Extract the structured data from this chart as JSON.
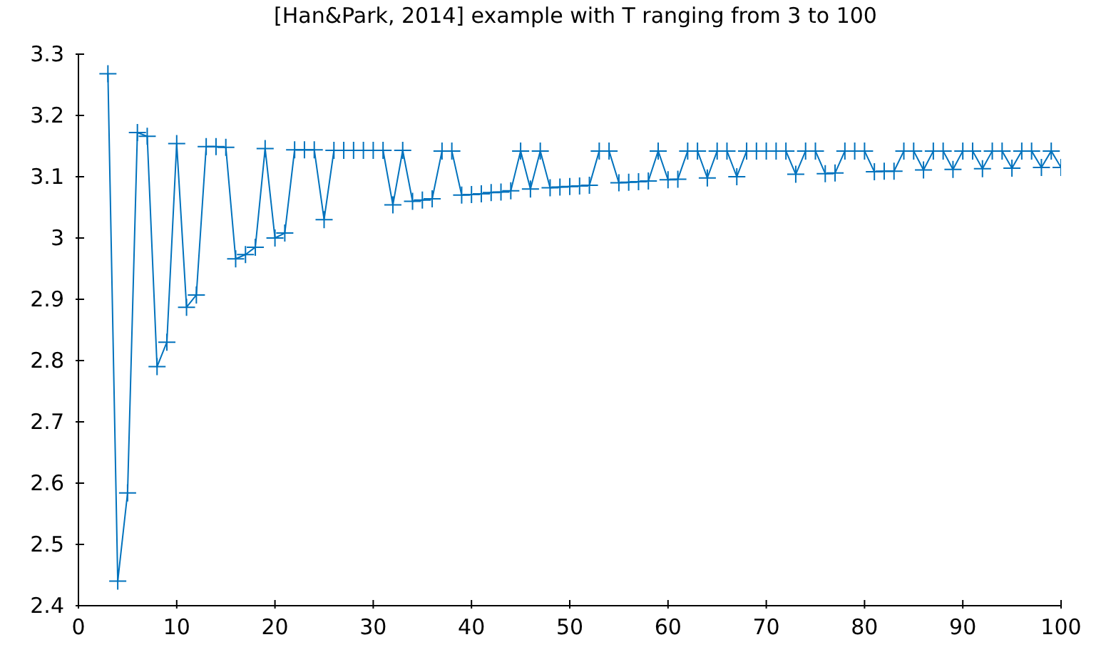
{
  "chart_data": {
    "type": "line",
    "title": "[Han&Park, 2014] example with T ranging from 3 to 100",
    "x": [
      3,
      4,
      5,
      6,
      7,
      8,
      9,
      10,
      11,
      12,
      13,
      14,
      15,
      16,
      17,
      18,
      19,
      20,
      21,
      22,
      23,
      24,
      25,
      26,
      27,
      28,
      29,
      30,
      31,
      32,
      33,
      34,
      35,
      36,
      37,
      38,
      39,
      40,
      41,
      42,
      43,
      44,
      45,
      46,
      47,
      48,
      49,
      50,
      51,
      52,
      53,
      54,
      55,
      56,
      57,
      58,
      59,
      60,
      61,
      62,
      63,
      64,
      65,
      66,
      67,
      68,
      69,
      70,
      71,
      72,
      73,
      74,
      75,
      76,
      77,
      78,
      79,
      80,
      81,
      82,
      83,
      84,
      85,
      86,
      87,
      88,
      89,
      90,
      91,
      92,
      93,
      94,
      95,
      96,
      97,
      98,
      99,
      100
    ],
    "series": [
      {
        "color": "#0072bd",
        "values": [
          3.268,
          2.44,
          2.584,
          3.172,
          3.166,
          2.79,
          2.83,
          3.154,
          2.887,
          2.907,
          3.149,
          3.149,
          3.148,
          2.966,
          2.973,
          2.985,
          3.146,
          3.0,
          3.008,
          3.144,
          3.144,
          3.144,
          3.03,
          3.143,
          3.143,
          3.143,
          3.143,
          3.143,
          3.143,
          3.054,
          3.143,
          3.06,
          3.062,
          3.064,
          3.142,
          3.142,
          3.07,
          3.071,
          3.072,
          3.074,
          3.075,
          3.077,
          3.142,
          3.08,
          3.142,
          3.082,
          3.083,
          3.084,
          3.085,
          3.086,
          3.142,
          3.142,
          3.09,
          3.091,
          3.092,
          3.093,
          3.142,
          3.095,
          3.096,
          3.142,
          3.142,
          3.098,
          3.142,
          3.142,
          3.1,
          3.142,
          3.142,
          3.142,
          3.142,
          3.142,
          3.104,
          3.142,
          3.142,
          3.105,
          3.106,
          3.142,
          3.142,
          3.142,
          3.108,
          3.109,
          3.109,
          3.142,
          3.142,
          3.111,
          3.142,
          3.142,
          3.112,
          3.142,
          3.142,
          3.113,
          3.142,
          3.142,
          3.114,
          3.142,
          3.142,
          3.115,
          3.142,
          3.115
        ]
      }
    ],
    "xlim": [
      0,
      100
    ],
    "xticks": [
      0,
      10,
      20,
      30,
      40,
      50,
      60,
      70,
      80,
      90,
      100
    ],
    "ylim": [
      2.4,
      3.3
    ],
    "yticks": [
      2.4,
      2.5,
      2.6,
      2.7,
      2.8,
      2.9,
      3,
      3.1,
      3.2,
      3.3
    ],
    "grid": false,
    "legend": false,
    "marker": "cross",
    "line_style": "solid"
  }
}
